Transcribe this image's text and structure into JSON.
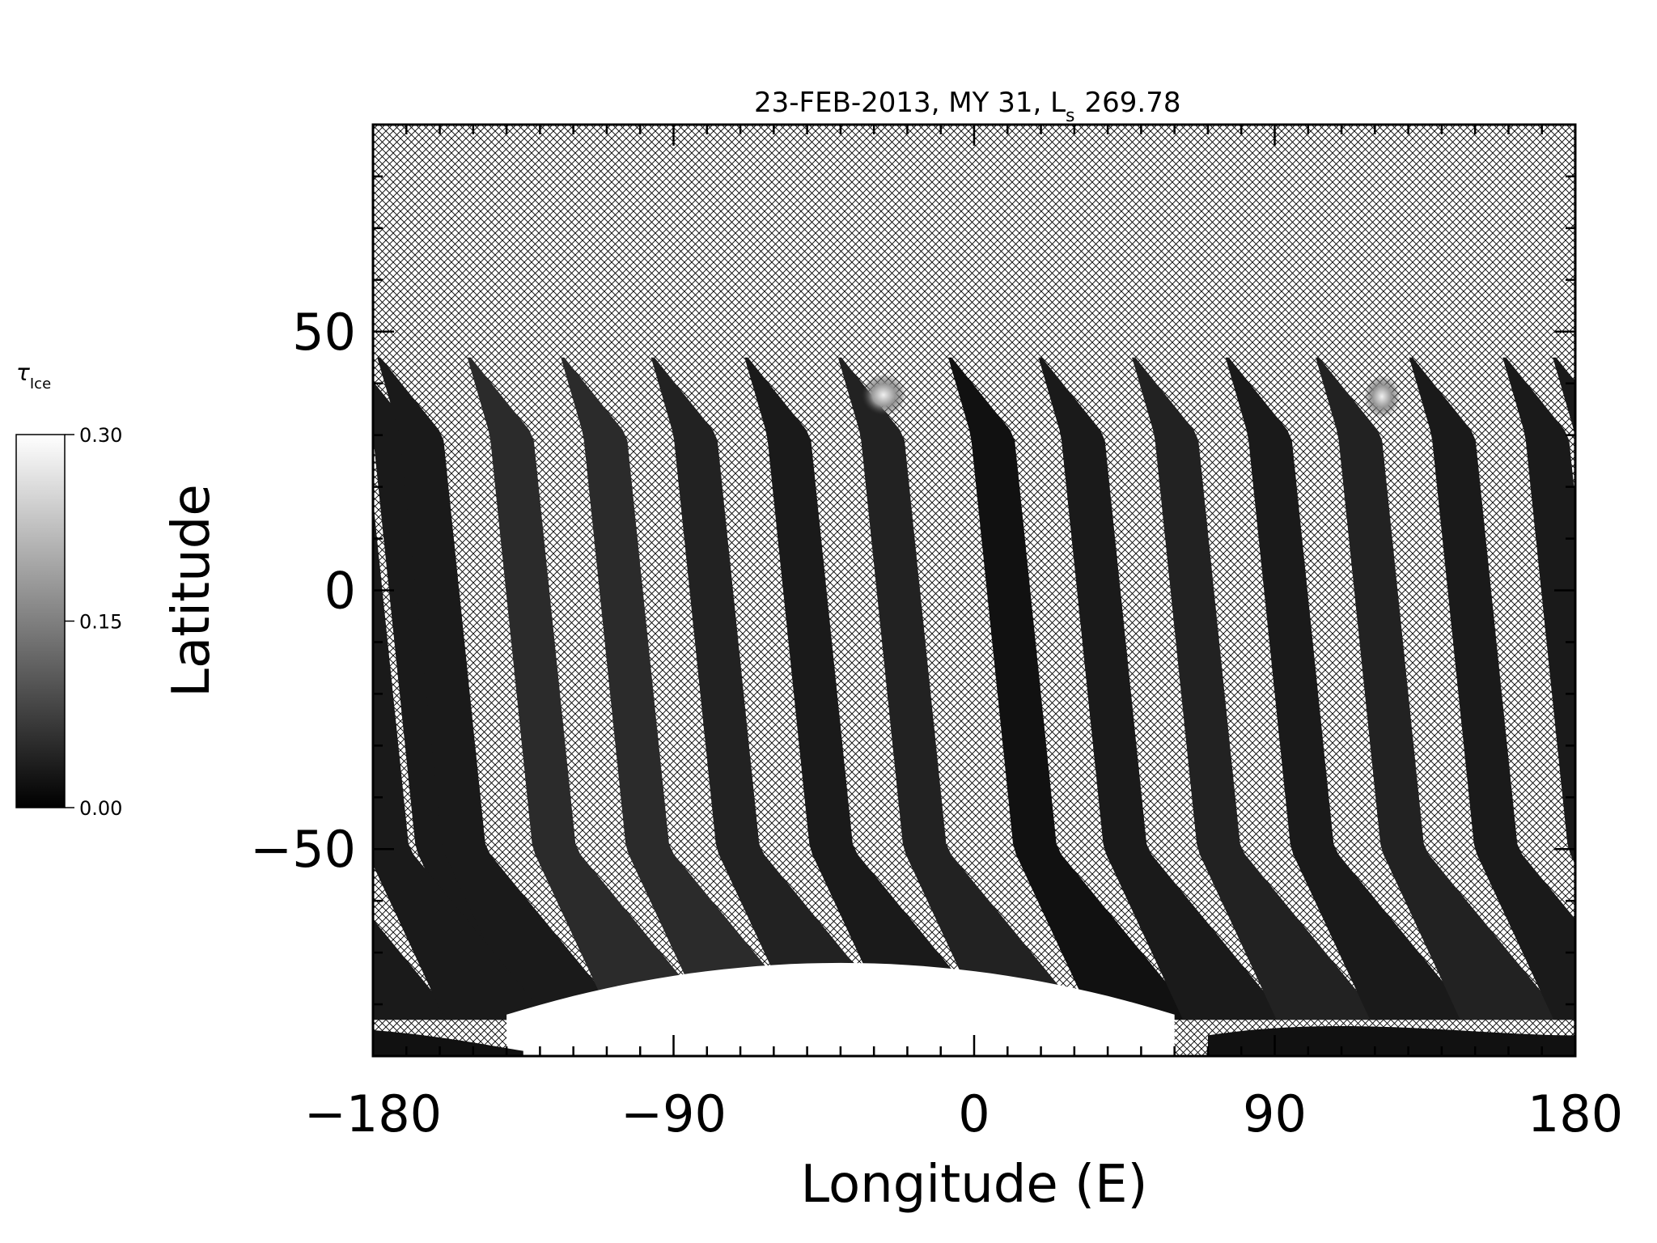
{
  "chart_data": {
    "type": "heatmap",
    "title": "23-FEB-2013, MY 31,  L",
    "title_sub": "s",
    "title_value": "269.78",
    "xlabel": "Longitude (E)",
    "ylabel": "Latitude",
    "xlim": [
      -180,
      180
    ],
    "ylim": [
      -90,
      90
    ],
    "x_ticks": [
      -180,
      -90,
      0,
      90,
      180
    ],
    "x_tick_labels": [
      "−180",
      "−90",
      "0",
      "90",
      "180"
    ],
    "y_ticks": [
      -50,
      0,
      50
    ],
    "y_tick_labels": [
      "−50",
      "0",
      "50"
    ],
    "x_minor_step": 10,
    "y_minor_step": 10,
    "no_data_pattern": "crosshatch",
    "colorscale": "grayscale",
    "colorbar": {
      "title": "τ",
      "title_sub": "Ice",
      "range": [
        0.0,
        0.3
      ],
      "ticks": [
        0.0,
        0.15,
        0.3
      ],
      "tick_labels": [
        "0.00",
        "0.15",
        "0.30"
      ]
    },
    "swaths": [
      {
        "lon_start": 180,
        "value": 0.03
      },
      {
        "lon_start": -172,
        "value": 0.03
      },
      {
        "lon_start": -145,
        "value": 0.05
      },
      {
        "lon_start": -117,
        "value": 0.05
      },
      {
        "lon_start": -90,
        "value": 0.04
      },
      {
        "lon_start": -62,
        "value": 0.03
      },
      {
        "lon_start": -34,
        "value": 0.04
      },
      {
        "lon_start": -1,
        "value": 0.02
      },
      {
        "lon_start": 26,
        "value": 0.03
      },
      {
        "lon_start": 54,
        "value": 0.04
      },
      {
        "lon_start": 82,
        "value": 0.03
      },
      {
        "lon_start": 109,
        "value": 0.04
      },
      {
        "lon_start": 137,
        "value": 0.03
      },
      {
        "lon_start": 165,
        "value": 0.03
      }
    ],
    "polar_cap": {
      "lat_edge": -72,
      "value": 0.3
    }
  }
}
